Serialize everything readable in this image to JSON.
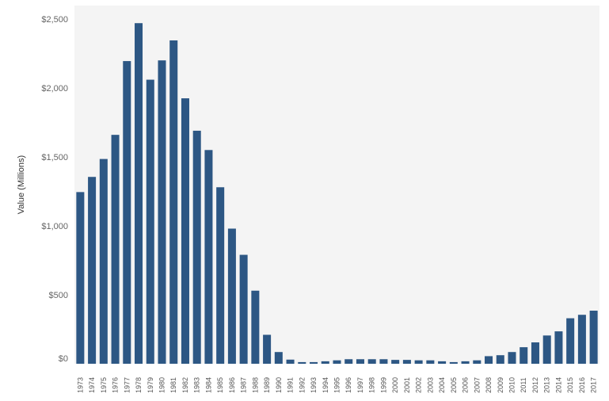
{
  "chart_data": {
    "type": "bar",
    "title": "",
    "xlabel": "",
    "ylabel": "Value (Millions)",
    "ylim": [
      0,
      2500
    ],
    "yticks": [
      0,
      500,
      1000,
      1500,
      2000,
      2500
    ],
    "ytick_labels": [
      "$0",
      "$500",
      "$1,000",
      "$1,500",
      "$2,000",
      "$2,500"
    ],
    "grid": false,
    "colors": {
      "bar": "#2d5784",
      "plot_background": "#f4f4f4"
    },
    "categories": [
      "1973",
      "1974",
      "1975",
      "1976",
      "1977",
      "1978",
      "1979",
      "1980",
      "1981",
      "1982",
      "1983",
      "1984",
      "1985",
      "1986",
      "1987",
      "1988",
      "1989",
      "1990",
      "1991",
      "1992",
      "1993",
      "1994",
      "1995",
      "1996",
      "1997",
      "1998",
      "1999",
      "2000",
      "2001",
      "2002",
      "2003",
      "2004",
      "2005",
      "2006",
      "2007",
      "2008",
      "2009",
      "2010",
      "2011",
      "2012",
      "2013",
      "2014",
      "2015",
      "2016",
      "2017"
    ],
    "values": [
      1245,
      1355,
      1485,
      1660,
      2195,
      2470,
      2060,
      2200,
      2345,
      1925,
      1690,
      1550,
      1280,
      980,
      790,
      530,
      210,
      85,
      30,
      12,
      12,
      18,
      25,
      33,
      33,
      33,
      33,
      28,
      28,
      25,
      25,
      18,
      12,
      18,
      25,
      55,
      62,
      85,
      120,
      155,
      205,
      235,
      330,
      355,
      385
    ]
  }
}
